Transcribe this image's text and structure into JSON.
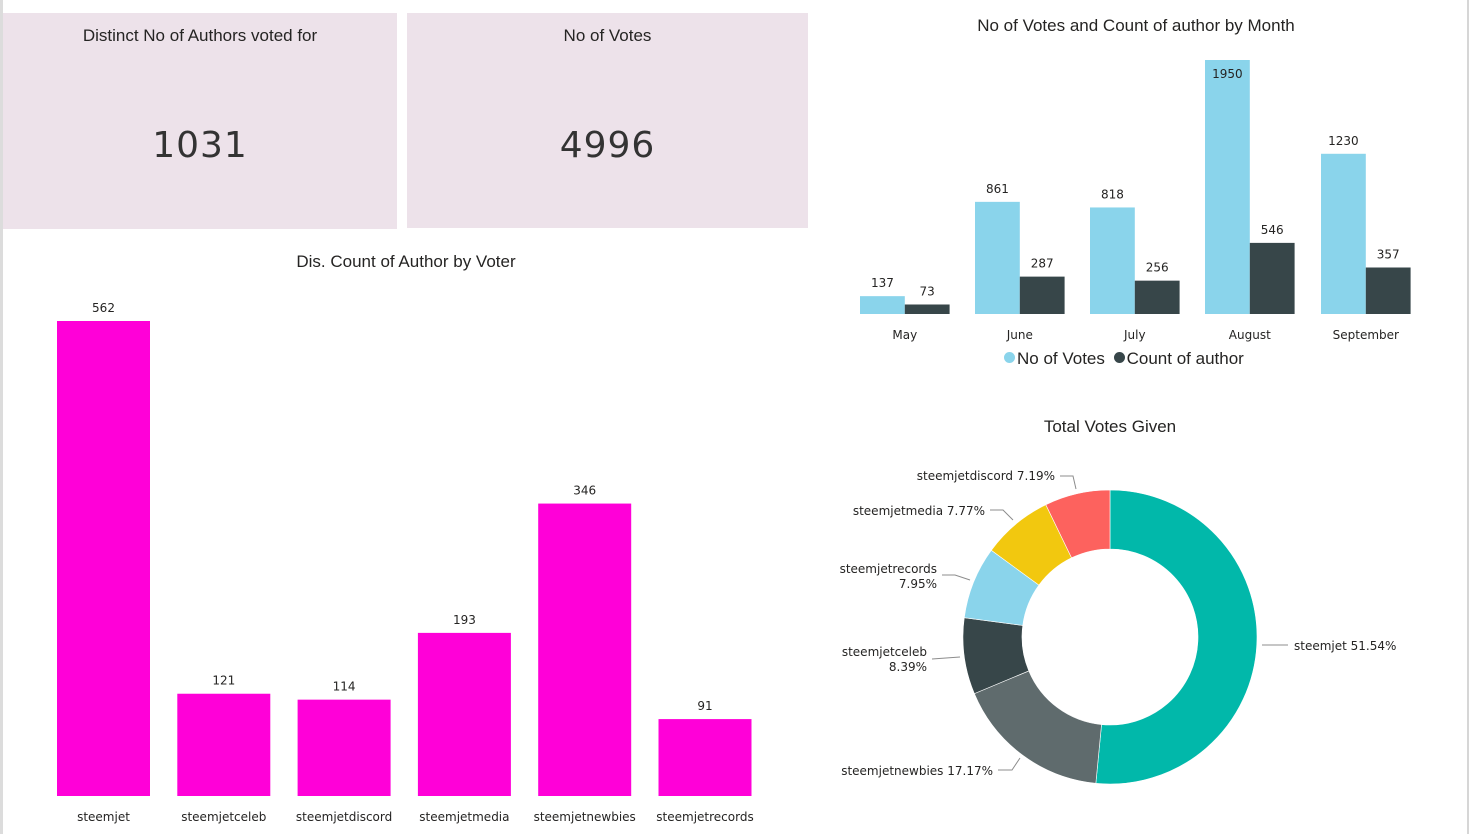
{
  "cards": [
    {
      "title": "Distinct No of Authors voted for",
      "value": "1031"
    },
    {
      "title": "No of Votes",
      "value": "4996"
    }
  ],
  "colors": {
    "card_bg": "#ede2ea",
    "magenta": "#ff00d8",
    "votes": "#8ad4eb",
    "authors": "#374649",
    "donut": {
      "steemjet": "#01b8aa",
      "steemjetnewbies": "#5f6b6d",
      "steemjetceleb": "#374649",
      "steemjetrecords": "#8ad4eb",
      "steemjetmedia": "#f2c80f",
      "steemjetdiscord": "#fd625e"
    }
  },
  "chart_data": [
    {
      "id": "author-by-voter",
      "type": "bar",
      "title": "Dis. Count of Author by Voter",
      "categories": [
        "steemjet",
        "steemjetceleb",
        "steemjetdiscord",
        "steemjetmedia",
        "steemjetnewbies",
        "steemjetrecords"
      ],
      "values": [
        562,
        121,
        114,
        193,
        346,
        91
      ],
      "data_labels": [
        "562",
        "121",
        "114",
        "193",
        "346",
        "91"
      ],
      "xlabel": "",
      "ylabel": "",
      "ylim": [
        0,
        562
      ],
      "grid": false,
      "legend": "none"
    },
    {
      "id": "votes-by-month",
      "type": "bar",
      "title": "No of Votes and Count of author by Month",
      "categories": [
        "May",
        "June",
        "July",
        "August",
        "September"
      ],
      "series": [
        {
          "name": "No of Votes",
          "values": [
            137,
            861,
            818,
            1950,
            1230
          ]
        },
        {
          "name": "Count of author",
          "values": [
            73,
            287,
            256,
            546,
            357
          ]
        }
      ],
      "xlabel": "",
      "ylabel": "",
      "ylim": [
        0,
        1950
      ],
      "grid": false,
      "legend": "bottom-center"
    },
    {
      "id": "total-votes-given",
      "type": "pie",
      "donut": true,
      "title": "Total Votes Given",
      "slices": [
        {
          "label": "steemjet",
          "percent": 51.54,
          "text": "steemjet 51.54%"
        },
        {
          "label": "steemjetnewbies",
          "percent": 17.17,
          "text": "steemjetnewbies 17.17%"
        },
        {
          "label": "steemjetceleb",
          "percent": 8.39,
          "text": [
            "steemjetceleb",
            "8.39%"
          ]
        },
        {
          "label": "steemjetrecords",
          "percent": 7.95,
          "text": [
            "steemjetrecords",
            "7.95%"
          ]
        },
        {
          "label": "steemjetmedia",
          "percent": 7.77,
          "text": "steemjetmedia 7.77%"
        },
        {
          "label": "steemjetdiscord",
          "percent": 7.19,
          "text": "steemjetdiscord 7.19%"
        }
      ],
      "legend": "none"
    }
  ]
}
